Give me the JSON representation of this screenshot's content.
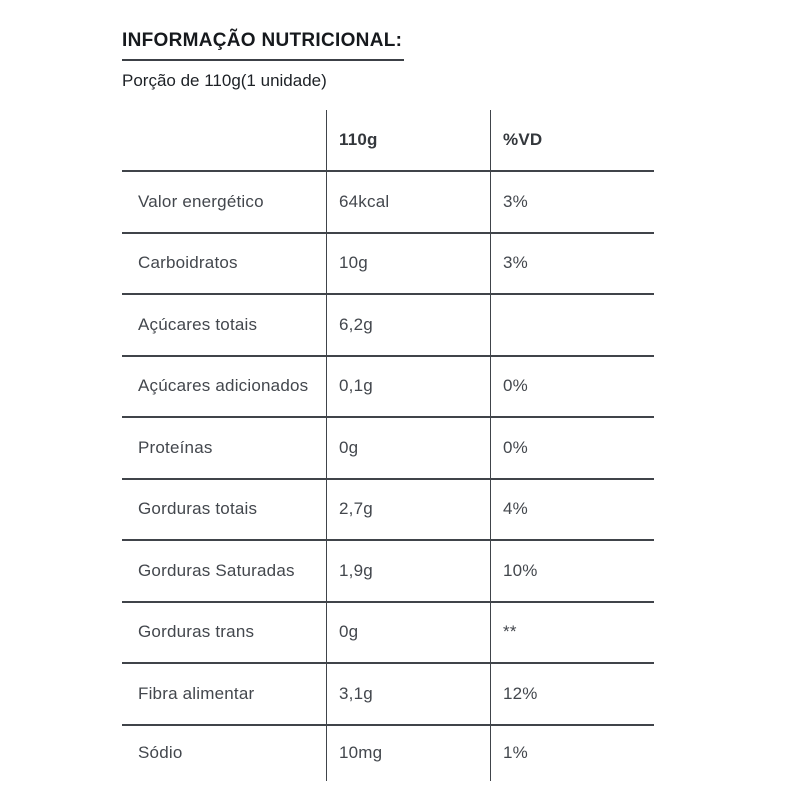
{
  "header": {
    "title": "INFORMAÇÃO NUTRICIONAL:",
    "portion": "Porção de 110g(1 unidade)"
  },
  "table": {
    "columns": [
      "",
      "110g",
      "%VD"
    ],
    "rows": [
      {
        "label": "Valor energético",
        "amount": "64kcal",
        "vd": "3%"
      },
      {
        "label": "Carboidratos",
        "amount": "10g",
        "vd": "3%"
      },
      {
        "label": "Açúcares totais",
        "amount": "6,2g",
        "vd": ""
      },
      {
        "label": "Açúcares adicionados",
        "amount": "0,1g",
        "vd": "0%"
      },
      {
        "label": "Proteínas",
        "amount": "0g",
        "vd": "0%"
      },
      {
        "label": "Gorduras totais",
        "amount": "2,7g",
        "vd": "4%"
      },
      {
        "label": "Gorduras Saturadas",
        "amount": "1,9g",
        "vd": "10%"
      },
      {
        "label": "Gorduras trans",
        "amount": "0g",
        "vd": "**"
      },
      {
        "label": "Fibra alimentar",
        "amount": "3,1g",
        "vd": "12%"
      },
      {
        "label": "Sódio",
        "amount": "10mg",
        "vd": "1%"
      }
    ]
  },
  "colors": {
    "background": "#ffffff",
    "title_text": "#16191d",
    "body_text": "#43474d",
    "line": "#40444a"
  }
}
